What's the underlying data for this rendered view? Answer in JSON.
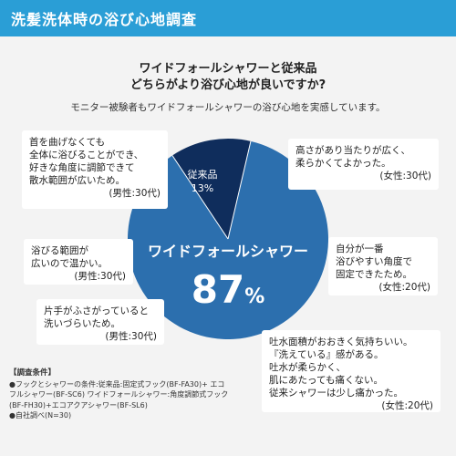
{
  "header": {
    "title": "洗髪洗体時の浴び心地調査"
  },
  "question": {
    "line1": "ワイドフォールシャワーと従来品",
    "line2": "どちらがより浴び心地が良いですか?",
    "subtitle": "モニター被験者もワイドフォールシャワーの浴び心地を実感しています。"
  },
  "chart_data": {
    "type": "pie",
    "slices": [
      {
        "label": "ワイドフォールシャワー",
        "value": 87,
        "value_text": "87",
        "unit": "%",
        "color": "#2c6fae"
      },
      {
        "label": "従来品",
        "value": 13,
        "value_text": "13%",
        "color": "#0f2d5c"
      }
    ]
  },
  "callouts": [
    {
      "lines": [
        "首を曲げなくても",
        "全体に浴びることができ、",
        "好きな角度に調節できて",
        "散水範囲が広いため。"
      ],
      "attr": "(男性:30代)"
    },
    {
      "lines": [
        "高さがあり当たりが広く、",
        "柔らかくてよかった。"
      ],
      "attr": "(女性:30代)"
    },
    {
      "lines": [
        "浴びる範囲が",
        "広いので温かい。"
      ],
      "attr": "(男性:30代)"
    },
    {
      "lines": [
        "自分が一番",
        "浴びやすい角度で",
        "固定できたため。"
      ],
      "attr": "(女性:20代)"
    },
    {
      "lines": [
        "片手がふさがっていると",
        "洗いづらいため。"
      ],
      "attr": "(男性:30代)"
    },
    {
      "lines": [
        "吐水面積がおおきく気持ちいい。",
        "『洗えている』感がある。",
        "吐水が柔らかく、",
        "肌にあたっても痛くない。",
        "従来シャワーは少し痛かった。"
      ],
      "attr": "(女性:20代)"
    }
  ],
  "notes": {
    "title": "【調査条件】",
    "items": [
      "●フックとシャワーの条件:従来品:固定式フック(BF-FA30)+ エコ",
      "フルシャワー(BF-SC6) ワイドフォールシャワー:角度調節式フック",
      "(BF-FH30)+エコアクアシャワー(BF-SL6)",
      "●自社調べ(N=30)"
    ]
  }
}
